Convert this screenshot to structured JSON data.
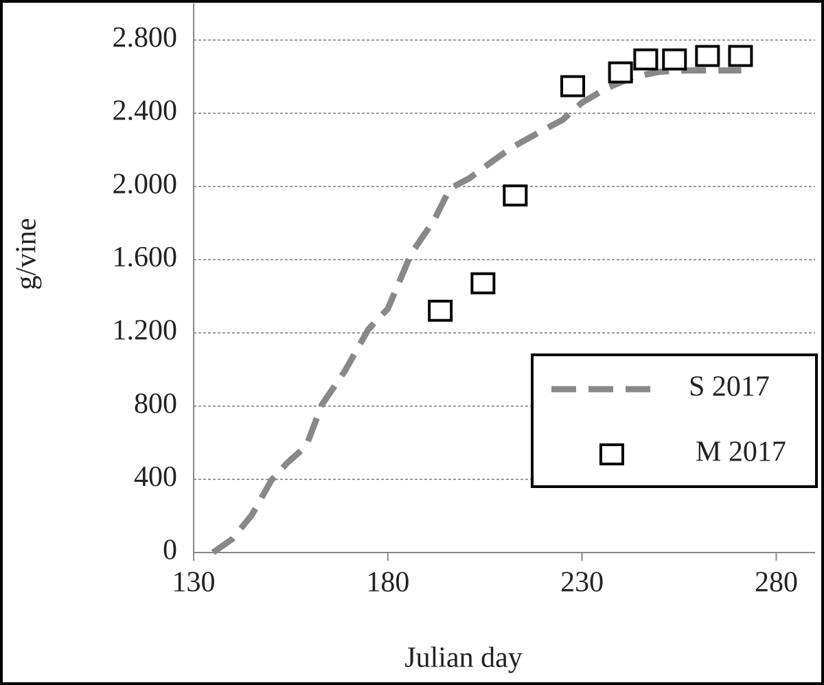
{
  "chart_data": {
    "type": "line",
    "x_label": "Julian day",
    "y_label": "g/vine",
    "xlim": [
      130,
      290
    ],
    "xticks": [
      130,
      180,
      230,
      280
    ],
    "ylim": [
      0,
      3000
    ],
    "yticks": [
      0,
      400,
      800,
      {
        "value": 1200,
        "label": "1.200"
      },
      {
        "value": 1600,
        "label": "1.600"
      },
      {
        "value": 2000,
        "label": "2.000"
      },
      {
        "value": 2400,
        "label": "2.400"
      },
      {
        "value": 2800,
        "label": "2.800"
      }
    ],
    "grid": true,
    "legend": "lower right",
    "series": [
      {
        "name": "S 2017",
        "color": "#888888",
        "style": "dashed",
        "x": [
          135,
          140,
          145,
          150,
          154,
          159,
          163,
          169,
          175,
          180,
          186,
          192,
          196,
          201,
          207,
          212,
          220,
          225,
          230,
          236,
          243,
          250,
          257,
          264,
          271
        ],
        "values": [
          0,
          75,
          206,
          394,
          488,
          582,
          807,
          994,
          1220,
          1332,
          1632,
          1820,
          1989,
          2045,
          2139,
          2214,
          2308,
          2364,
          2458,
          2533,
          2597,
          2627,
          2634,
          2634,
          2634
        ]
      },
      {
        "name": "M 2017",
        "color": "#000000",
        "style": "square",
        "x": [
          193.5,
          204.5,
          212.8,
          227.6,
          239.9,
          246.4,
          253.8,
          262.3,
          270.8
        ],
        "values": [
          1321,
          1471,
          1951,
          2548,
          2623,
          2694,
          2694,
          2713,
          2713
        ]
      }
    ]
  }
}
